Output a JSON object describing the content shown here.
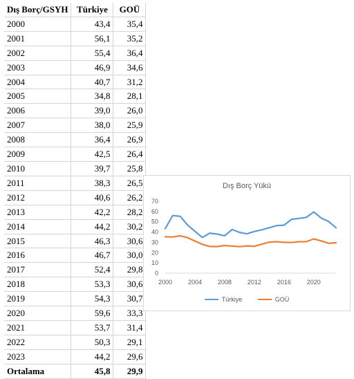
{
  "table": {
    "headers": [
      "Dış Borç/GSYH",
      "Türkiye",
      "GOÜ"
    ],
    "rows": [
      [
        "2000",
        "43,4",
        "35,4"
      ],
      [
        "2001",
        "56,1",
        "35,2"
      ],
      [
        "2002",
        "55,4",
        "36,4"
      ],
      [
        "2003",
        "46,9",
        "34,6"
      ],
      [
        "2004",
        "40,7",
        "31,2"
      ],
      [
        "2005",
        "34,8",
        "28,1"
      ],
      [
        "2006",
        "39,0",
        "26,0"
      ],
      [
        "2007",
        "38,0",
        "25,9"
      ],
      [
        "2008",
        "36,4",
        "26,9"
      ],
      [
        "2009",
        "42,5",
        "26,4"
      ],
      [
        "2010",
        "39,7",
        "25,8"
      ],
      [
        "2011",
        "38,3",
        "26,5"
      ],
      [
        "2012",
        "40,6",
        "26,2"
      ],
      [
        "2013",
        "42,2",
        "28,2"
      ],
      [
        "2014",
        "44,2",
        "30,2"
      ],
      [
        "2015",
        "46,3",
        "30,6"
      ],
      [
        "2016",
        "46,7",
        "30,0"
      ],
      [
        "2017",
        "52,4",
        "29,8"
      ],
      [
        "2018",
        "53,3",
        "30,6"
      ],
      [
        "2019",
        "54,3",
        "30,7"
      ],
      [
        "2020",
        "59,6",
        "33,3"
      ],
      [
        "2021",
        "53,7",
        "31,4"
      ],
      [
        "2022",
        "50,3",
        "29,1"
      ],
      [
        "2023",
        "44,2",
        "29,6"
      ]
    ],
    "footer": [
      "Ortalama",
      "45,8",
      "29,9"
    ]
  },
  "colors": {
    "turkiye": "#5b9bd5",
    "gou": "#ed7d31",
    "grid": "#d9d9d9"
  },
  "chart_data": {
    "type": "line",
    "title": "Dış Borç Yükü",
    "x": [
      2000,
      2001,
      2002,
      2003,
      2004,
      2005,
      2006,
      2007,
      2008,
      2009,
      2010,
      2011,
      2012,
      2013,
      2014,
      2015,
      2016,
      2017,
      2018,
      2019,
      2020,
      2021,
      2022,
      2023
    ],
    "series": [
      {
        "name": "Türkiye",
        "values": [
          43.4,
          56.1,
          55.4,
          46.9,
          40.7,
          34.8,
          39.0,
          38.0,
          36.4,
          42.5,
          39.7,
          38.3,
          40.6,
          42.2,
          44.2,
          46.3,
          46.7,
          52.4,
          53.3,
          54.3,
          59.6,
          53.7,
          50.3,
          44.2
        ]
      },
      {
        "name": "GOÜ",
        "values": [
          35.4,
          35.2,
          36.4,
          34.6,
          31.2,
          28.1,
          26.0,
          25.9,
          26.9,
          26.4,
          25.8,
          26.5,
          26.2,
          28.2,
          30.2,
          30.6,
          30.0,
          29.8,
          30.6,
          30.7,
          33.3,
          31.4,
          29.1,
          29.6
        ]
      }
    ],
    "xticks": [
      2000,
      2004,
      2008,
      2012,
      2016,
      2020
    ],
    "yticks": [
      0,
      10,
      20,
      30,
      40,
      50,
      60,
      70
    ],
    "xlim": [
      2000,
      2023
    ],
    "ylim": [
      0,
      70
    ],
    "grid": false,
    "legend": "bottom"
  }
}
